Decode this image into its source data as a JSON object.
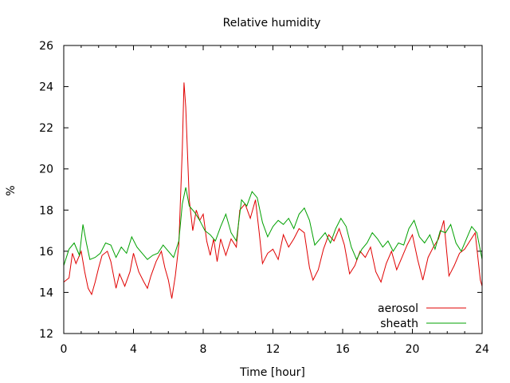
{
  "chart_data": {
    "type": "line",
    "title": "Relative humidity",
    "xlabel": "Time [hour]",
    "ylabel": "%",
    "xlim": [
      0,
      24
    ],
    "ylim": [
      12,
      26
    ],
    "xticks": [
      0,
      4,
      8,
      12,
      16,
      20,
      24
    ],
    "yticks": [
      12,
      14,
      16,
      18,
      20,
      22,
      24,
      26
    ],
    "grid": false,
    "legend": "bottom-right",
    "series": [
      {
        "name": "aerosol",
        "color": "#e00000",
        "points": [
          [
            0,
            14.5
          ],
          [
            0.3,
            14.7
          ],
          [
            0.5,
            15.9
          ],
          [
            0.7,
            15.4
          ],
          [
            1.0,
            16.0
          ],
          [
            1.2,
            15.0
          ],
          [
            1.4,
            14.2
          ],
          [
            1.6,
            13.9
          ],
          [
            1.8,
            14.5
          ],
          [
            2.0,
            15.2
          ],
          [
            2.2,
            15.8
          ],
          [
            2.5,
            16.0
          ],
          [
            2.7,
            15.5
          ],
          [
            3.0,
            14.2
          ],
          [
            3.2,
            14.9
          ],
          [
            3.5,
            14.3
          ],
          [
            3.8,
            15.0
          ],
          [
            4.0,
            15.9
          ],
          [
            4.3,
            15.0
          ],
          [
            4.6,
            14.5
          ],
          [
            4.8,
            14.2
          ],
          [
            5.0,
            14.8
          ],
          [
            5.3,
            15.5
          ],
          [
            5.6,
            16.0
          ],
          [
            5.8,
            15.2
          ],
          [
            6.0,
            14.6
          ],
          [
            6.2,
            13.7
          ],
          [
            6.4,
            14.8
          ],
          [
            6.6,
            16.3
          ],
          [
            6.8,
            21.0
          ],
          [
            6.9,
            24.2
          ],
          [
            7.0,
            23.0
          ],
          [
            7.2,
            18.5
          ],
          [
            7.4,
            17.0
          ],
          [
            7.6,
            18.0
          ],
          [
            7.8,
            17.5
          ],
          [
            8.0,
            17.8
          ],
          [
            8.2,
            16.5
          ],
          [
            8.4,
            15.8
          ],
          [
            8.6,
            16.6
          ],
          [
            8.8,
            15.5
          ],
          [
            9.0,
            16.6
          ],
          [
            9.3,
            15.8
          ],
          [
            9.6,
            16.6
          ],
          [
            9.9,
            16.2
          ],
          [
            10.1,
            18.0
          ],
          [
            10.4,
            18.3
          ],
          [
            10.7,
            17.6
          ],
          [
            11.0,
            18.5
          ],
          [
            11.2,
            17.0
          ],
          [
            11.4,
            15.4
          ],
          [
            11.7,
            15.9
          ],
          [
            12.0,
            16.1
          ],
          [
            12.3,
            15.6
          ],
          [
            12.6,
            16.8
          ],
          [
            12.9,
            16.2
          ],
          [
            13.2,
            16.6
          ],
          [
            13.5,
            17.1
          ],
          [
            13.8,
            16.9
          ],
          [
            14.1,
            15.2
          ],
          [
            14.3,
            14.6
          ],
          [
            14.6,
            15.1
          ],
          [
            14.9,
            16.1
          ],
          [
            15.2,
            16.8
          ],
          [
            15.5,
            16.5
          ],
          [
            15.8,
            17.1
          ],
          [
            16.1,
            16.3
          ],
          [
            16.4,
            14.9
          ],
          [
            16.7,
            15.3
          ],
          [
            17.0,
            16.0
          ],
          [
            17.3,
            15.7
          ],
          [
            17.6,
            16.2
          ],
          [
            17.9,
            15.0
          ],
          [
            18.2,
            14.5
          ],
          [
            18.5,
            15.4
          ],
          [
            18.8,
            16.0
          ],
          [
            19.1,
            15.1
          ],
          [
            19.4,
            15.7
          ],
          [
            19.7,
            16.3
          ],
          [
            20.0,
            16.8
          ],
          [
            20.3,
            15.6
          ],
          [
            20.6,
            14.6
          ],
          [
            20.9,
            15.7
          ],
          [
            21.2,
            16.2
          ],
          [
            21.5,
            16.6
          ],
          [
            21.8,
            17.5
          ],
          [
            22.1,
            14.8
          ],
          [
            22.4,
            15.3
          ],
          [
            22.7,
            15.9
          ],
          [
            23.0,
            16.1
          ],
          [
            23.3,
            16.5
          ],
          [
            23.6,
            16.9
          ],
          [
            23.9,
            14.6
          ],
          [
            24.0,
            14.3
          ]
        ]
      },
      {
        "name": "sheath",
        "color": "#00a000",
        "points": [
          [
            0,
            15.3
          ],
          [
            0.3,
            16.1
          ],
          [
            0.6,
            16.4
          ],
          [
            0.9,
            15.8
          ],
          [
            1.1,
            17.3
          ],
          [
            1.3,
            16.4
          ],
          [
            1.5,
            15.6
          ],
          [
            1.8,
            15.7
          ],
          [
            2.1,
            15.9
          ],
          [
            2.4,
            16.4
          ],
          [
            2.7,
            16.3
          ],
          [
            3.0,
            15.7
          ],
          [
            3.3,
            16.2
          ],
          [
            3.6,
            15.9
          ],
          [
            3.9,
            16.7
          ],
          [
            4.2,
            16.2
          ],
          [
            4.5,
            15.9
          ],
          [
            4.8,
            15.6
          ],
          [
            5.1,
            15.8
          ],
          [
            5.4,
            15.9
          ],
          [
            5.7,
            16.3
          ],
          [
            6.0,
            16.0
          ],
          [
            6.3,
            15.7
          ],
          [
            6.6,
            16.5
          ],
          [
            6.8,
            18.3
          ],
          [
            7.0,
            19.1
          ],
          [
            7.2,
            18.2
          ],
          [
            7.5,
            17.9
          ],
          [
            7.8,
            17.5
          ],
          [
            8.1,
            17.0
          ],
          [
            8.4,
            16.8
          ],
          [
            8.7,
            16.5
          ],
          [
            9.0,
            17.2
          ],
          [
            9.3,
            17.8
          ],
          [
            9.6,
            16.9
          ],
          [
            9.9,
            16.5
          ],
          [
            10.2,
            18.5
          ],
          [
            10.5,
            18.2
          ],
          [
            10.8,
            18.9
          ],
          [
            11.1,
            18.6
          ],
          [
            11.4,
            17.4
          ],
          [
            11.7,
            16.7
          ],
          [
            12.0,
            17.2
          ],
          [
            12.3,
            17.5
          ],
          [
            12.6,
            17.3
          ],
          [
            12.9,
            17.6
          ],
          [
            13.2,
            17.1
          ],
          [
            13.5,
            17.8
          ],
          [
            13.8,
            18.1
          ],
          [
            14.1,
            17.5
          ],
          [
            14.4,
            16.3
          ],
          [
            14.7,
            16.6
          ],
          [
            15.0,
            16.9
          ],
          [
            15.3,
            16.4
          ],
          [
            15.6,
            17.1
          ],
          [
            15.9,
            17.6
          ],
          [
            16.2,
            17.2
          ],
          [
            16.5,
            16.2
          ],
          [
            16.8,
            15.6
          ],
          [
            17.1,
            16.1
          ],
          [
            17.4,
            16.4
          ],
          [
            17.7,
            16.9
          ],
          [
            18.0,
            16.6
          ],
          [
            18.3,
            16.2
          ],
          [
            18.6,
            16.5
          ],
          [
            18.9,
            16.0
          ],
          [
            19.2,
            16.4
          ],
          [
            19.5,
            16.3
          ],
          [
            19.8,
            17.1
          ],
          [
            20.1,
            17.5
          ],
          [
            20.4,
            16.7
          ],
          [
            20.7,
            16.4
          ],
          [
            21.0,
            16.8
          ],
          [
            21.3,
            16.1
          ],
          [
            21.6,
            17.0
          ],
          [
            21.9,
            16.9
          ],
          [
            22.2,
            17.3
          ],
          [
            22.5,
            16.4
          ],
          [
            22.8,
            16.0
          ],
          [
            23.1,
            16.6
          ],
          [
            23.4,
            17.2
          ],
          [
            23.7,
            16.9
          ],
          [
            24.0,
            15.6
          ]
        ]
      }
    ]
  }
}
